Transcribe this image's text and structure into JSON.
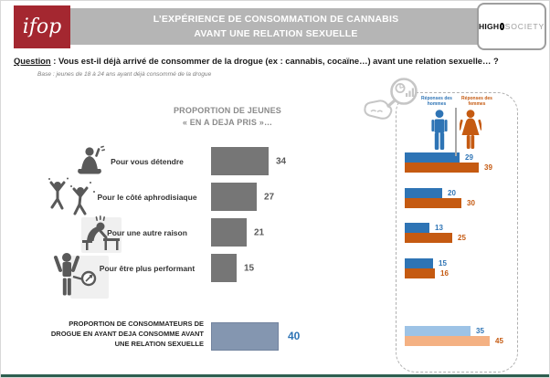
{
  "colors": {
    "ifop_red": "#A42730",
    "banner_gray": "#B5B5B5",
    "heading_gray": "#8A8A8A",
    "bar_gray": "#767676",
    "text_gray": "#595959",
    "men_blue": "#2E74B5",
    "women_orange": "#C55A11",
    "men_blue_light": "#9DC3E6",
    "women_orange_light": "#F4B183",
    "total_bluegray": "#8496B0",
    "footer_green": "#2D5F4F"
  },
  "header": {
    "ifop_logo": "ifop",
    "title_line1": "L’EXPÉRIENCE DE CONSOMMATION DE CANNABIS",
    "title_line2": "AVANT UNE RELATION SEXUELLE",
    "high": "HIGH",
    "society": "SOCIETY"
  },
  "question": {
    "label": "Question",
    "text": " : Vous est-il déjà arrivé de consommer de la drogue (ex : cannabis, cocaïne…) avant une relation sexuelle… ?",
    "base": "Base : jeunes de 18 à 24 ans ayant déjà consommé de la drogue"
  },
  "icons": {
    "row_icons": [
      "relax-person-icon",
      "dancing-people-icon",
      "slumped-person-icon",
      "performance-gauge-icon"
    ],
    "panel_icon": "hand-magnifier-chart-icon",
    "legend_icons": [
      "male-pictogram-icon",
      "female-pictogram-icon"
    ],
    "logo_icon": "ring-icon"
  },
  "chart_data": [
    {
      "type": "bar",
      "title": "PROPORTION DE JEUNES « EN A DEJA PRIS »…",
      "title_line1": "PROPORTION DE JEUNES",
      "title_line2": "« EN A DEJA PRIS »…",
      "categories": [
        "Pour vous détendre",
        "Pour le côté aphrodisiaque",
        "Pour une autre raison",
        "Pour être plus performant"
      ],
      "values": [
        34,
        27,
        21,
        15
      ],
      "bar_color": "#767676",
      "total_label": "PROPORTION DE CONSOMMATEURS DE DROGUE EN AYANT DEJA CONSOMME AVANT UNE RELATION SEXUELLE",
      "total_value": 40,
      "total_bar_color": "#8496B0",
      "xlim": [
        0,
        40
      ],
      "grid": false,
      "legend_position": "none"
    },
    {
      "type": "bar",
      "categories": [
        "Pour vous détendre",
        "Pour le côté aphrodisiaque",
        "Pour une autre raison",
        "Pour être plus performant"
      ],
      "series": [
        {
          "name": "Réponses des hommes",
          "color": "#2E74B5",
          "values": [
            29,
            20,
            13,
            15
          ],
          "total": 35,
          "total_color": "#9DC3E6"
        },
        {
          "name": "Réponses des femmes",
          "color": "#C55A11",
          "values": [
            39,
            30,
            25,
            16
          ],
          "total": 45,
          "total_color": "#F4B183"
        }
      ],
      "xlim": [
        0,
        45
      ],
      "grid": false,
      "legend_position": "top"
    }
  ]
}
